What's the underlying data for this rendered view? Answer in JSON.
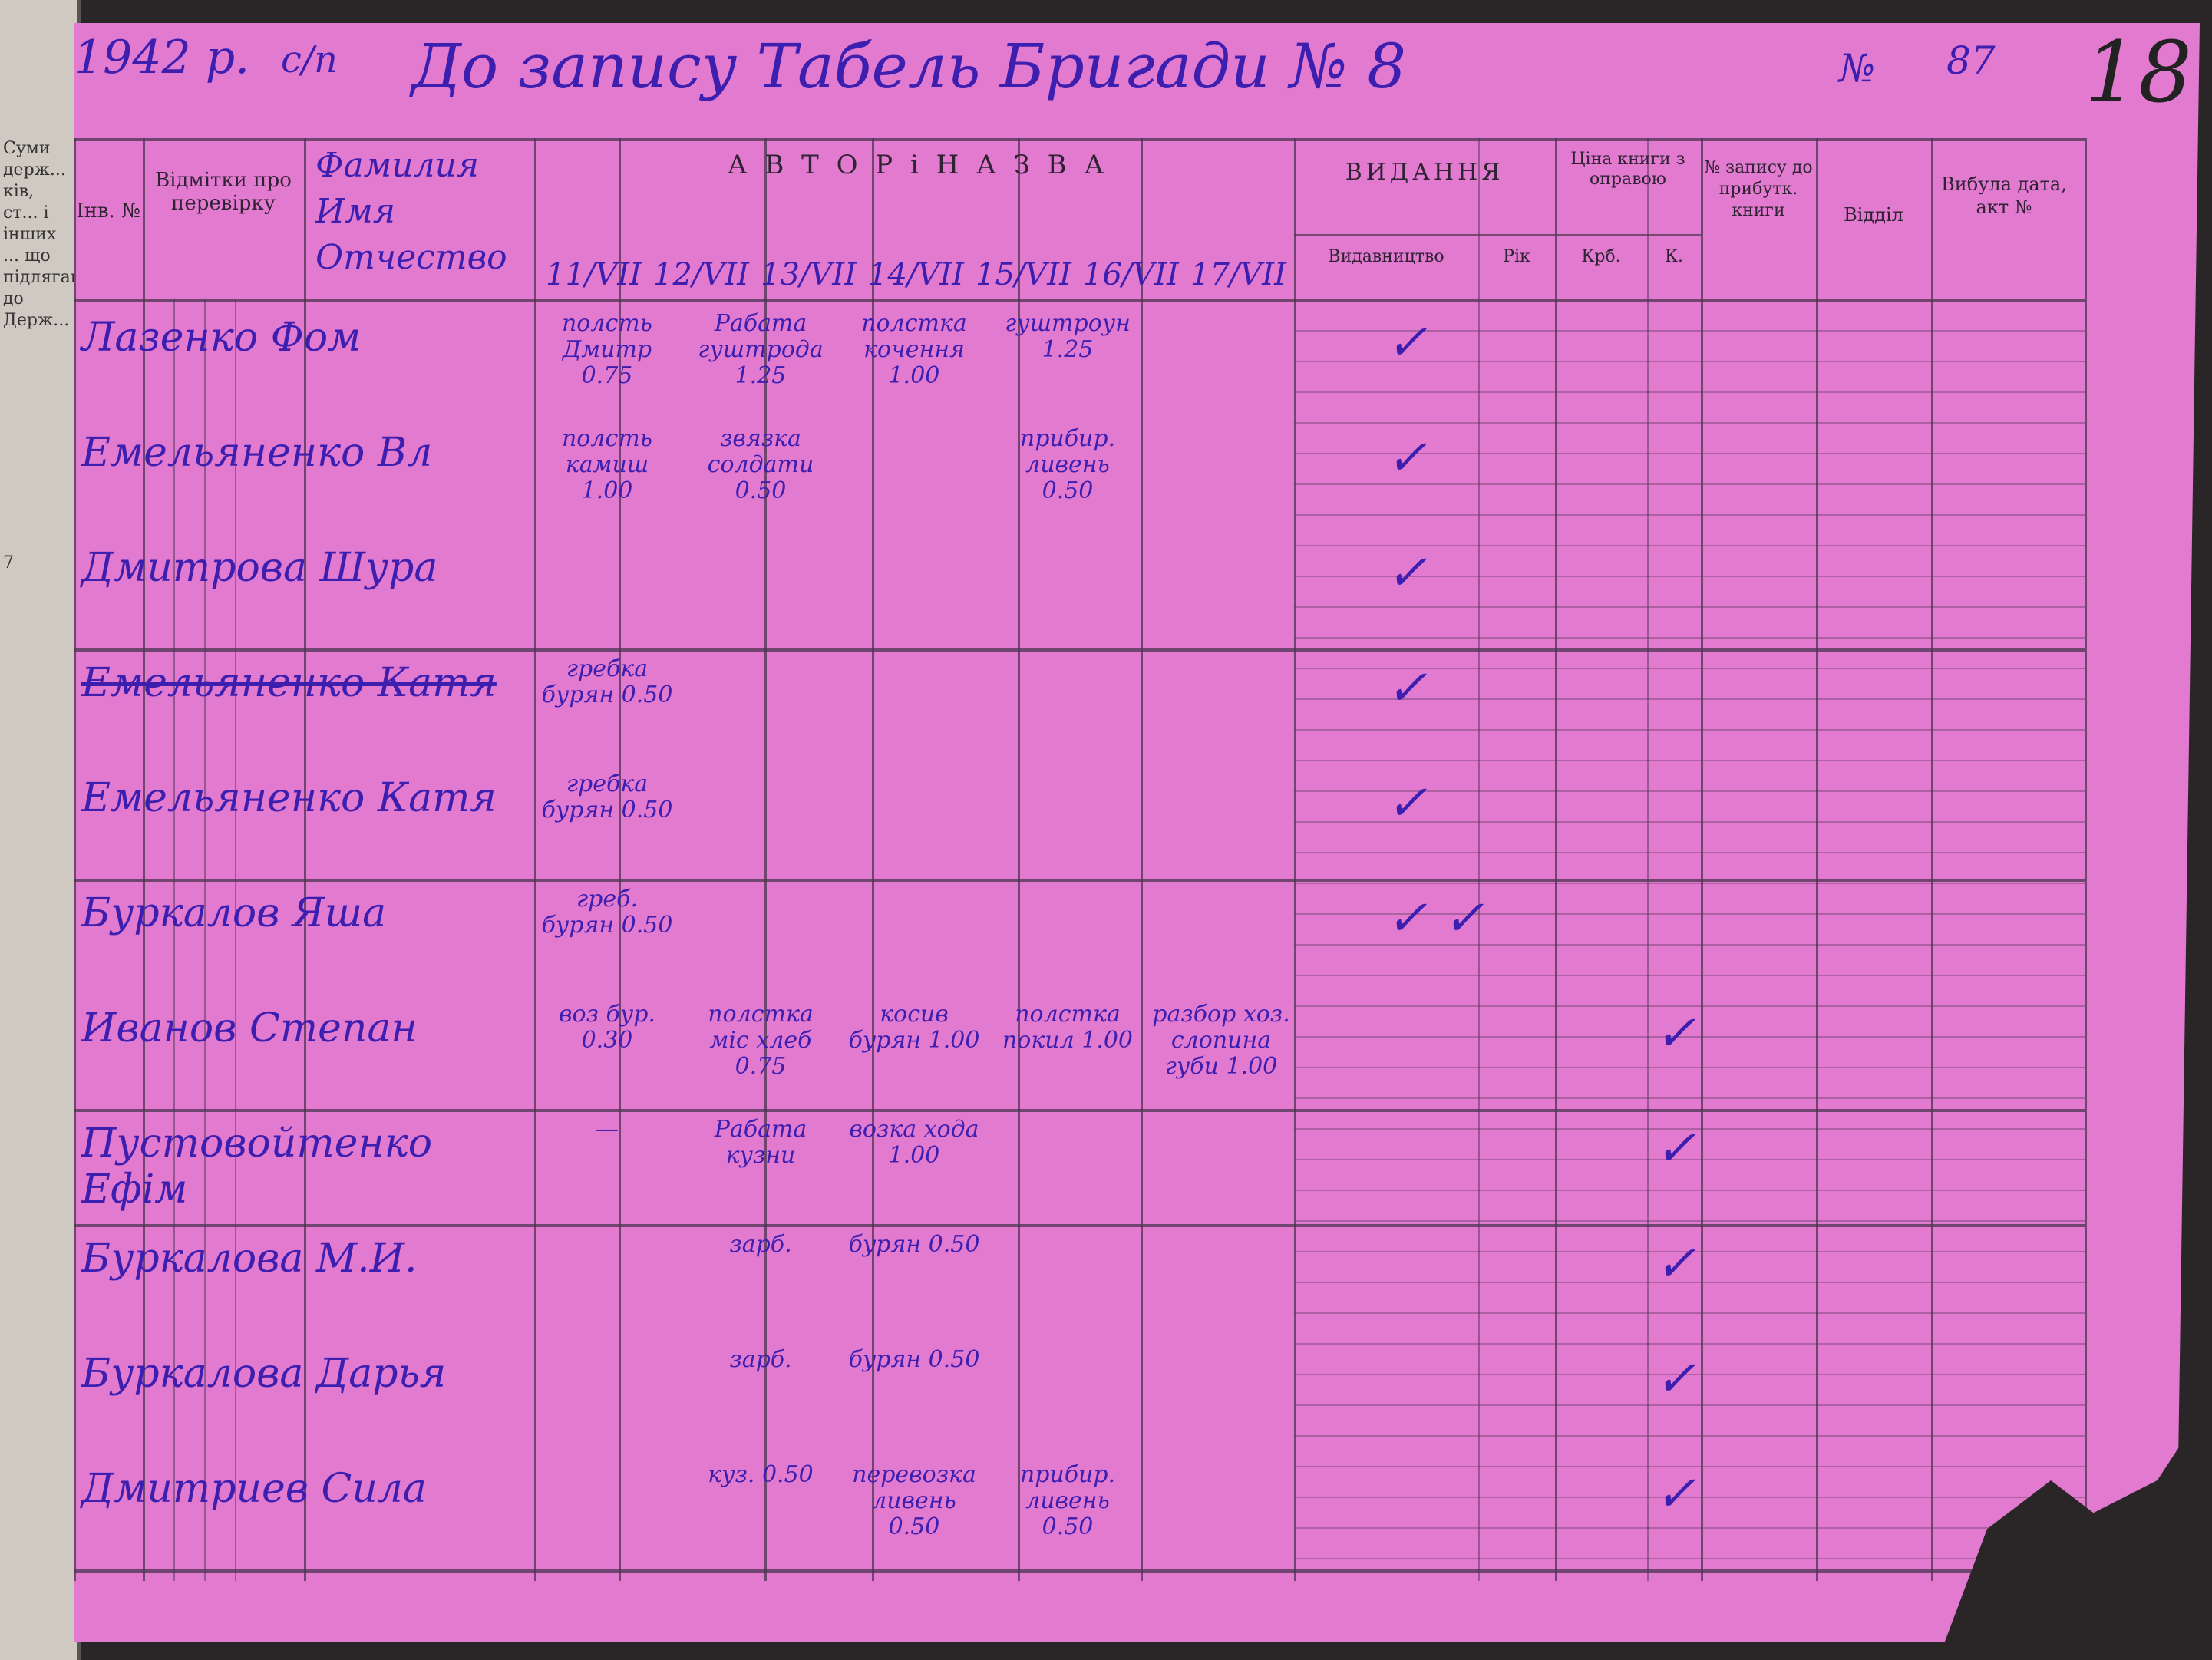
{
  "left_page_text": "Суми держ... ків, ст... і інших ... що підлягають до Держ...",
  "left_page_number": "7",
  "header_handwritten": {
    "year": "1942 р.",
    "mark": "с/п",
    "title": "До запису Табель Бригади № 8",
    "number_label": "№",
    "number_value": "87",
    "page_number": "18"
  },
  "columns": {
    "inv": "Інв. №",
    "check": "Відмітки про перевірку",
    "author_title": "А В Т О Р   і   Н А З В А",
    "edition": "ВИДАННЯ",
    "publisher": "Видавництво",
    "year": "Рік",
    "price": "Ціна книги з оправою",
    "krb": "Крб.",
    "kop": "К.",
    "record": "№ запису до прибутк. книги",
    "dept": "Відділ",
    "removed": "Вибула дата, акт №"
  },
  "column_handwritten": {
    "surname": "Фамилия",
    "name": "Имя",
    "patronymic": "Отчество",
    "dates": [
      "11/VII",
      "12/VII",
      "13/VII",
      "14/VII",
      "15/VII",
      "16/VII",
      "17/VII"
    ]
  },
  "rows": [
    {
      "name": "Лазенко Фом",
      "cells": [
        "полсть Дмитр 0.75",
        "Рабата гуштрода 1.25",
        "полстка кочення 1.00",
        "гуштроун 1.25"
      ],
      "check": "✓"
    },
    {
      "name": "Емельяненко Вл",
      "cells": [
        "полсть камиш 1.00",
        "звязка солдати 0.50",
        "",
        "прибир. ливень 0.50"
      ],
      "check": "✓"
    },
    {
      "name": "Дмитрова Шура",
      "cells": [
        "",
        "",
        "",
        "",
        ""
      ],
      "check": "✓"
    },
    {
      "name": "Емельяненко Катя",
      "struck": true,
      "cells": [
        "гребка бурян 0.50"
      ],
      "check": "✓"
    },
    {
      "name": "Емельяненко Катя",
      "cells": [
        "гребка бурян 0.50"
      ],
      "check": "✓"
    },
    {
      "name": "Буркалов Яша",
      "cells": [
        "греб. бурян 0.50"
      ],
      "check": "✓ ✓"
    },
    {
      "name": "Иванов Степан",
      "cells": [
        "воз бур. 0.30",
        "полстка мiс хлеб 0.75",
        "косив бурян 1.00",
        "полстка покил 1.00",
        "разбор хоз. слопина губи 1.00"
      ],
      "check": "✓"
    },
    {
      "name": "Пустовойтенко Ефім",
      "cells": [
        "—",
        "Рабата кузни",
        "возка хода 1.00"
      ],
      "check": "✓"
    },
    {
      "name": "Буркалова М.И.",
      "cells": [
        "",
        "зарб.",
        "бурян 0.50"
      ],
      "check": "✓"
    },
    {
      "name": "Буркалова Дарья",
      "cells": [
        "",
        "зарб.",
        "бурян 0.50"
      ],
      "check": "✓"
    },
    {
      "name": "Дмитриев Сила",
      "cells": [
        "",
        "куз. 0.50",
        "перевозка ливень 0.50",
        "прибир. ливень 0.50"
      ],
      "check": "✓"
    }
  ],
  "colors": {
    "paper": "#e27ad0",
    "ink": "#3d1fb0",
    "print": "#2e2233"
  }
}
